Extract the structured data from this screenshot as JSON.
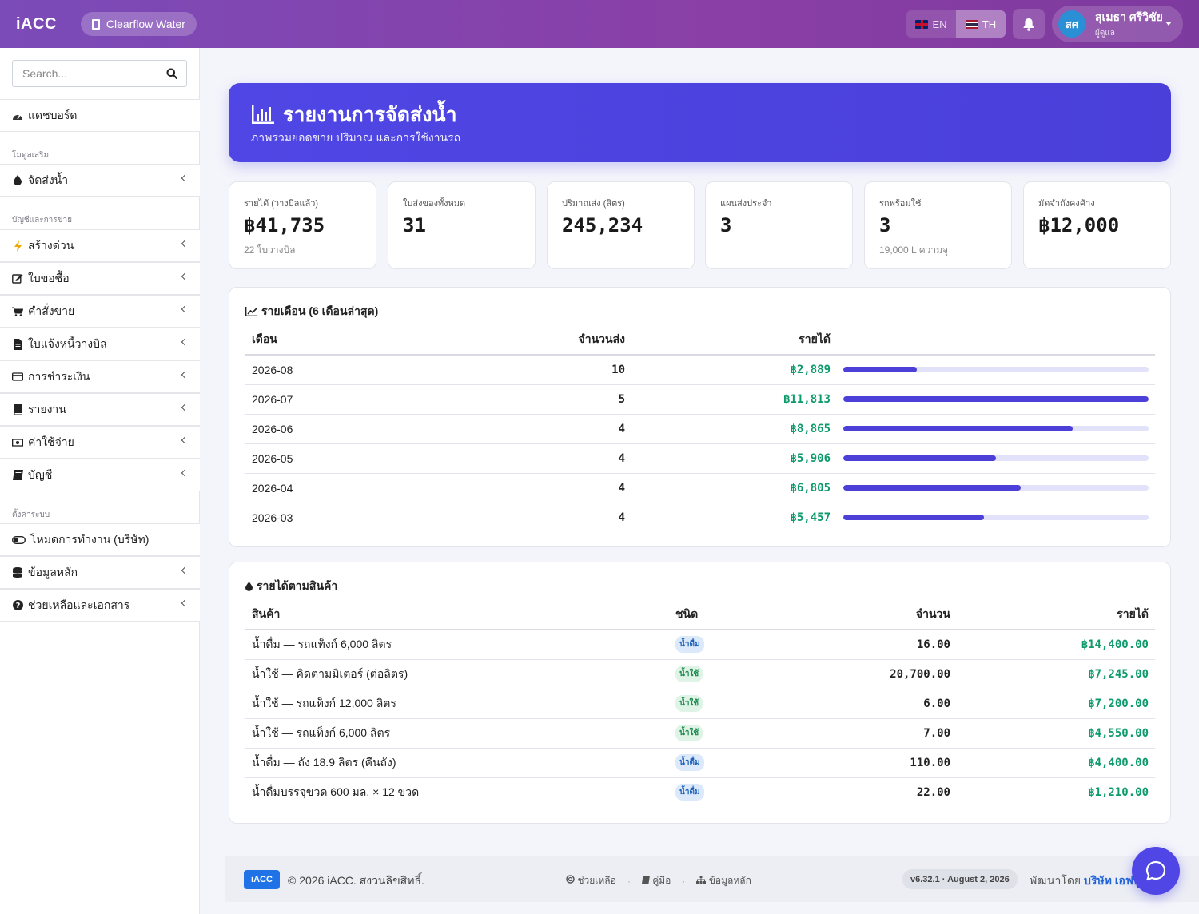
{
  "app": {
    "brand": "iACC",
    "company": "Clearflow Water"
  },
  "header": {
    "lang_en": "EN",
    "lang_th": "TH",
    "active_lang": "TH",
    "user_initials": "สศ",
    "user_name": "สุเมธา ศรีวิชัย",
    "user_role": "ผู้ดูแล"
  },
  "sidebar": {
    "search_placeholder": "Search...",
    "dashboard": "แดชบอร์ด",
    "section_addons": "โมดูลเสริม",
    "water_delivery": "จัดส่งน้ำ",
    "section_accounting": "บัญชีและการขาย",
    "items": [
      "สร้างด่วน",
      "ใบขอซื้อ",
      "คำสั่งขาย",
      "ใบแจ้งหนี้วางบิล",
      "การชำระเงิน",
      "รายงาน",
      "ค่าใช้จ่าย",
      "บัญชี"
    ],
    "section_settings": "ตั้งค่าระบบ",
    "settings_items": [
      "โหมดการทำงาน (บริษัท)",
      "ข้อมูลหลัก",
      "ช่วยเหลือและเอกสาร"
    ]
  },
  "hero": {
    "title": "รายงานการจัดส่งน้ำ",
    "subtitle": "ภาพรวมยอดขาย ปริมาณ และการใช้งานรถ"
  },
  "stats": [
    {
      "label": "รายได้ (วางบิลแล้ว)",
      "value": "฿41,735",
      "sub": "22 ใบวางบิล"
    },
    {
      "label": "ใบส่งของทั้งหมด",
      "value": "31",
      "sub": ""
    },
    {
      "label": "ปริมาณส่ง (ลิตร)",
      "value": "245,234",
      "sub": ""
    },
    {
      "label": "แผนส่งประจำ",
      "value": "3",
      "sub": ""
    },
    {
      "label": "รถพร้อมใช้",
      "value": "3",
      "sub": "19,000 L ความจุ"
    },
    {
      "label": "มัดจำถังคงค้าง",
      "value": "฿12,000",
      "sub": ""
    }
  ],
  "monthly": {
    "title": "รายเดือน (6 เดือนล่าสุด)",
    "headers": {
      "month": "เดือน",
      "count": "จำนวนส่ง",
      "revenue": "รายได้"
    },
    "rows": [
      {
        "month": "2026-08",
        "count": "10",
        "revenue": "฿2,889",
        "share": 0.24
      },
      {
        "month": "2026-07",
        "count": "5",
        "revenue": "฿11,813",
        "share": 1.0
      },
      {
        "month": "2026-06",
        "count": "4",
        "revenue": "฿8,865",
        "share": 0.75
      },
      {
        "month": "2026-05",
        "count": "4",
        "revenue": "฿5,906",
        "share": 0.5
      },
      {
        "month": "2026-04",
        "count": "4",
        "revenue": "฿6,805",
        "share": 0.58
      },
      {
        "month": "2026-03",
        "count": "4",
        "revenue": "฿5,457",
        "share": 0.46
      }
    ]
  },
  "products": {
    "title": "รายได้ตามสินค้า",
    "headers": {
      "product": "สินค้า",
      "type": "ชนิด",
      "qty": "จำนวน",
      "revenue": "รายได้"
    },
    "rows": [
      {
        "product": "น้ำดื่ม — รถแท็งก์ 6,000 ลิตร",
        "type": "น้ำดื่ม",
        "kind": "drink",
        "qty": "16.00",
        "revenue": "฿14,400.00"
      },
      {
        "product": "น้ำใช้ — คิดตามมิเตอร์ (ต่อลิตร)",
        "type": "น้ำใช้",
        "kind": "use",
        "qty": "20,700.00",
        "revenue": "฿7,245.00"
      },
      {
        "product": "น้ำใช้ — รถแท็งก์ 12,000 ลิตร",
        "type": "น้ำใช้",
        "kind": "use",
        "qty": "6.00",
        "revenue": "฿7,200.00"
      },
      {
        "product": "น้ำใช้ — รถแท็งก์ 6,000 ลิตร",
        "type": "น้ำใช้",
        "kind": "use",
        "qty": "7.00",
        "revenue": "฿4,550.00"
      },
      {
        "product": "น้ำดื่ม — ถัง 18.9 ลิตร (คืนถัง)",
        "type": "น้ำดื่ม",
        "kind": "drink",
        "qty": "110.00",
        "revenue": "฿4,400.00"
      },
      {
        "product": "น้ำดื่มบรรจุขวด 600 มล. × 12 ขวด",
        "type": "น้ำดื่ม",
        "kind": "drink",
        "qty": "22.00",
        "revenue": "฿1,210.00"
      }
    ]
  },
  "footer": {
    "logo": "iACC",
    "copyright": "© 2026 iACC. สงวนลิขสิทธิ์.",
    "link_help": "ช่วยเหลือ",
    "link_manual": "คู่มือ",
    "link_master": "ข้อมูลหลัก",
    "version": "v6.32.1 · August 2, 2026",
    "dev_prefix": "พัฒนาโดย",
    "dev_name": "บริษัท เอฟทู"
  },
  "colors": {
    "header_gradient": "#7b4bb8",
    "hero": "#4f46e5",
    "money": "#0d9b6a",
    "bar": "#4c40d8",
    "tag_drink_bg": "#dbe9fb",
    "tag_drink_fg": "#1c5fb8",
    "tag_use_bg": "#dff4e6",
    "tag_use_fg": "#1d8a4d"
  }
}
